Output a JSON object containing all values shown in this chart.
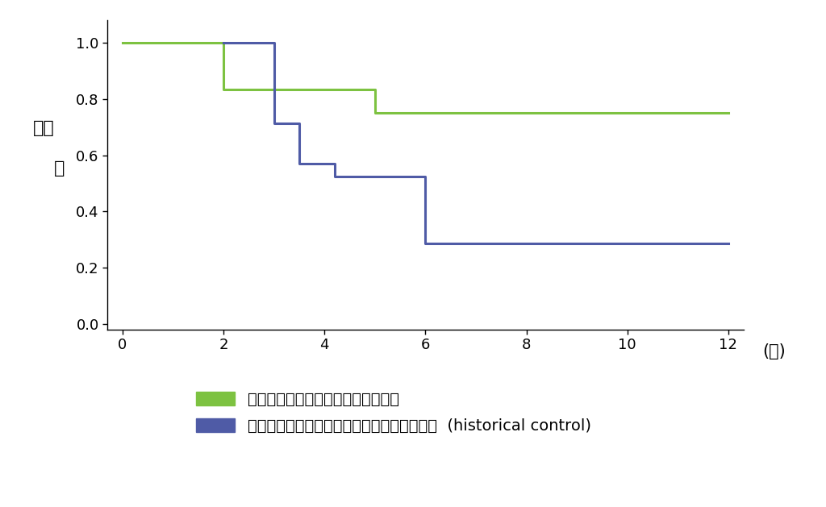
{
  "green_x": [
    0,
    2,
    2,
    5,
    5,
    12
  ],
  "green_y": [
    1.0,
    1.0,
    0.833,
    0.833,
    0.75,
    0.75
  ],
  "blue_x": [
    2,
    3,
    3,
    3.5,
    3.5,
    4.2,
    4.2,
    6,
    6,
    12
  ],
  "blue_y": [
    1.0,
    1.0,
    0.714,
    0.714,
    0.571,
    0.571,
    0.524,
    0.524,
    0.286,
    0.286
  ],
  "green_color": "#7DC241",
  "blue_color": "#4F5BA6",
  "xlim": [
    -0.3,
    12.3
  ],
  "ylim": [
    -0.02,
    1.08
  ],
  "xticks": [
    0,
    2,
    4,
    6,
    8,
    10,
    12
  ],
  "yticks": [
    0.0,
    0.2,
    0.4,
    0.6,
    0.8,
    1.0
  ],
  "xlabel_right": "(月)",
  "ylabel_line1": "生存",
  "ylabel_line2": "率",
  "green_label": "３剤併用免疫抑制治療をされた症例",
  "blue_label": "従来どおり病状に応じて治療を強化した症例  (historical control)",
  "line_width": 2.2,
  "font_size_tick": 13,
  "font_size_label": 15,
  "font_size_legend": 14
}
